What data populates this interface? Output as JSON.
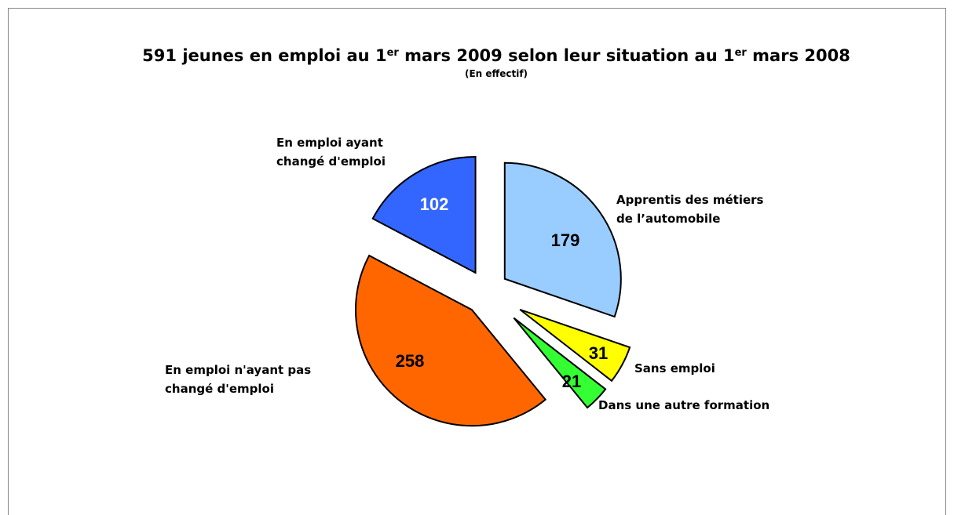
{
  "chart_data": {
    "type": "pie",
    "title": [
      "591 jeunes en emploi au 1",
      "er",
      " mars 2009 selon leur situation au 1",
      "er",
      " mars 2008"
    ],
    "subtitle": "(En effectif)",
    "categories": [
      "Apprentis des métiers\nde l’automobile",
      "Sans emploi",
      "Dans une autre formation",
      "En emploi n'ayant pas\nchangé d'emploi",
      "En emploi ayant\nchangé d'emploi"
    ],
    "values": [
      179,
      31,
      21,
      258,
      102
    ],
    "colors": [
      "#99ccff",
      "#ffff00",
      "#33ff33",
      "#ff6600",
      "#3366ff"
    ],
    "label_colors": [
      "#000000",
      "#000000",
      "#000000",
      "#000000",
      "#ffffff"
    ]
  }
}
